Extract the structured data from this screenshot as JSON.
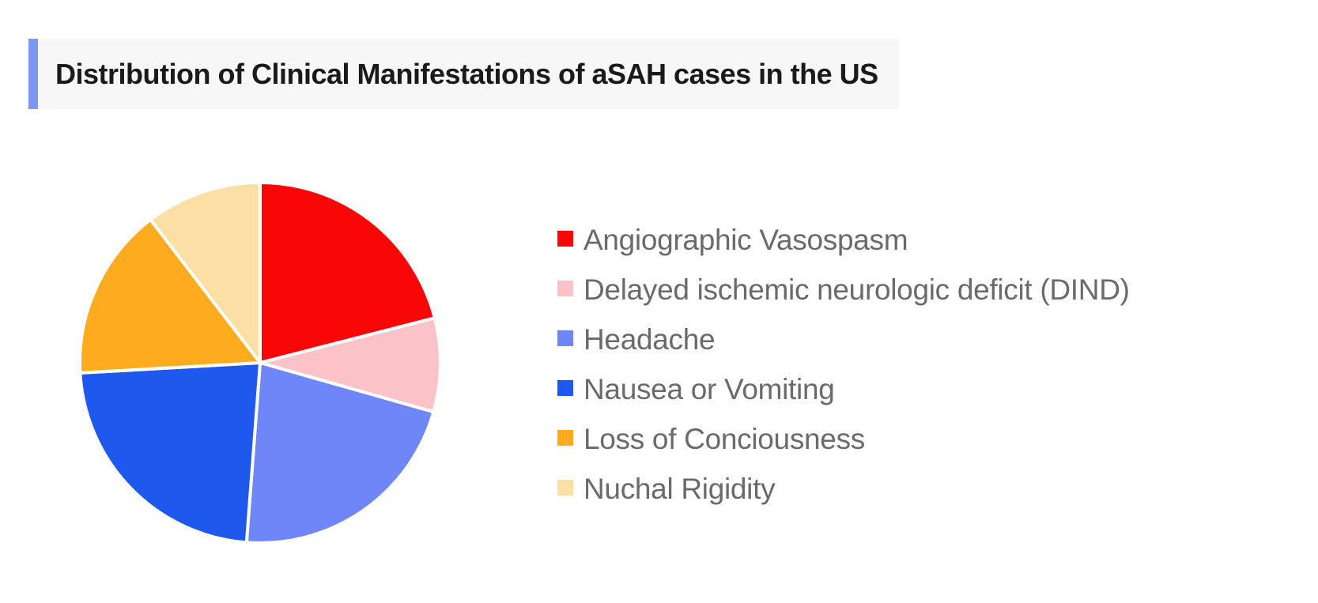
{
  "header": {
    "title": "Distribution of Clinical Manifestations of aSAH cases in the US",
    "accent_color": "#7d97ec",
    "background_color": "#f7f7f7",
    "text_color": "#1a1a1a"
  },
  "chart_data": {
    "type": "pie",
    "title": "Distribution of Clinical Manifestations of aSAH cases in the US",
    "categories": [
      "Angiographic Vasospasm",
      "Delayed ischemic neurologic deficit (DIND)",
      "Headache",
      "Nausea or Vomiting",
      "Loss of Conciousness",
      "Nuchal Rigidity"
    ],
    "values_percent": [
      21.0,
      8.4,
      21.8,
      22.9,
      15.5,
      10.4
    ],
    "colors": [
      "#f90606",
      "#fbc3c8",
      "#6e86f8",
      "#1e58ec",
      "#fcac1e",
      "#fcdfa4"
    ],
    "start_angle_deg": 0,
    "direction": "clockwise",
    "slice_border_color": "#ffffff",
    "slice_border_width": 4,
    "legend_position": "right",
    "legend_text_color": "#6a6a6a",
    "legend_marker_shape": "square"
  }
}
